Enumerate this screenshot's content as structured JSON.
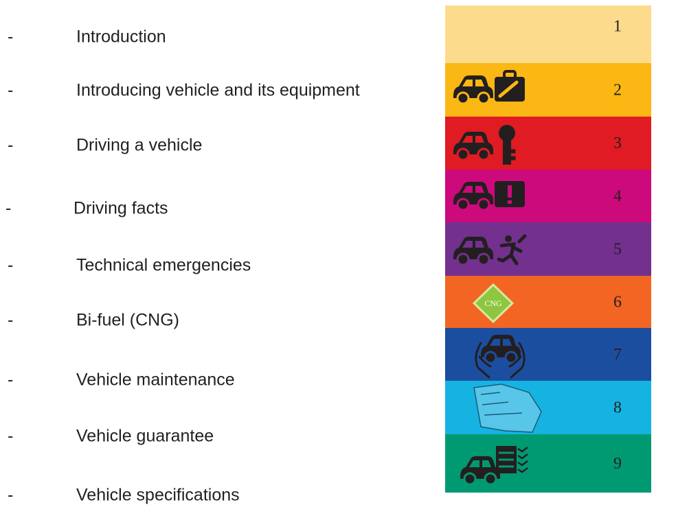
{
  "entries": [
    {
      "dash": "-",
      "title": "Introduction",
      "number": 1
    },
    {
      "dash": "-",
      "title": "Introducing vehicle and its equipment",
      "number": 2
    },
    {
      "dash": "-",
      "title": "Driving a vehicle",
      "number": 3
    },
    {
      "dash": "-",
      "title": "Driving facts",
      "number": 4
    },
    {
      "dash": "-",
      "title": "Technical emergencies",
      "number": 5
    },
    {
      "dash": "-",
      "title": "Bi-fuel (CNG)",
      "number": 6,
      "icon_label": "CNG"
    },
    {
      "dash": "-",
      "title": "Vehicle maintenance",
      "number": 7
    },
    {
      "dash": "-",
      "title": "Vehicle guarantee",
      "number": 8
    },
    {
      "dash": "-",
      "title": "Vehicle specifications",
      "number": 9
    }
  ]
}
